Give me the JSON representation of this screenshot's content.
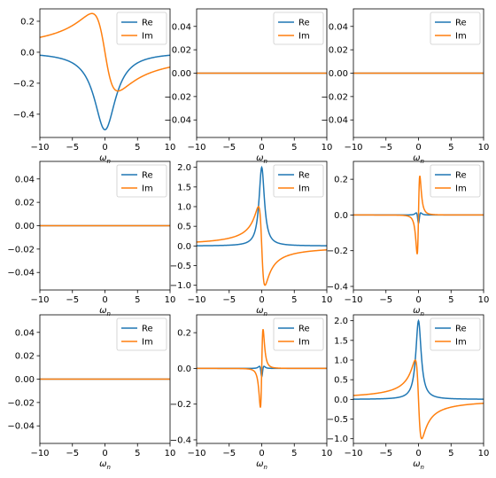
{
  "chart_data": [
    {
      "type": "line",
      "curve": "lorentz_dip",
      "amplitude": 0.5,
      "width": 2.0,
      "xlim": [
        -10,
        10
      ],
      "ylim": [
        -0.55,
        0.28
      ],
      "xticks": [
        -10,
        -5,
        0,
        5,
        10
      ],
      "xtick_labels": [
        "−10",
        "−5",
        "0",
        "5",
        "10"
      ],
      "yticks": [
        0.2,
        0.0,
        -0.2,
        -0.4
      ],
      "ytick_labels": [
        "0.2",
        "0.0",
        "−0.2",
        "−0.4"
      ],
      "xlabel": "ωn",
      "legend": {
        "position": "top-right",
        "entries": [
          "Re",
          "Im"
        ]
      }
    },
    {
      "type": "line",
      "curve": "zero",
      "xlim": [
        -10,
        10
      ],
      "ylim": [
        -0.055,
        0.055
      ],
      "xticks": [
        -10,
        -5,
        0,
        5,
        10
      ],
      "xtick_labels": [
        "−10",
        "−5",
        "0",
        "5",
        "10"
      ],
      "yticks": [
        0.04,
        0.02,
        0.0,
        -0.02,
        -0.04
      ],
      "ytick_labels": [
        "0.04",
        "0.02",
        "0.00",
        "−0.02",
        "−0.04"
      ],
      "xlabel": "ωn",
      "legend": {
        "position": "top-right",
        "entries": [
          "Re",
          "Im"
        ]
      }
    },
    {
      "type": "line",
      "curve": "zero",
      "xlim": [
        -10,
        10
      ],
      "ylim": [
        -0.055,
        0.055
      ],
      "xticks": [
        -10,
        -5,
        0,
        5,
        10
      ],
      "xtick_labels": [
        "−10",
        "−5",
        "0",
        "5",
        "10"
      ],
      "yticks": [
        0.04,
        0.02,
        0.0,
        -0.02,
        -0.04
      ],
      "ytick_labels": [
        "0.04",
        "0.02",
        "0.00",
        "−0.02",
        "−0.04"
      ],
      "xlabel": "ωn",
      "legend": {
        "position": "top-right",
        "entries": [
          "Re",
          "Im"
        ]
      }
    },
    {
      "type": "line",
      "curve": "zero",
      "xlim": [
        -10,
        10
      ],
      "ylim": [
        -0.055,
        0.055
      ],
      "xticks": [
        -10,
        -5,
        0,
        5,
        10
      ],
      "xtick_labels": [
        "−10",
        "−5",
        "0",
        "5",
        "10"
      ],
      "yticks": [
        0.04,
        0.02,
        0.0,
        -0.02,
        -0.04
      ],
      "ytick_labels": [
        "0.04",
        "0.02",
        "0.00",
        "−0.02",
        "−0.04"
      ],
      "xlabel": "ωn",
      "legend": {
        "position": "top-right",
        "entries": [
          "Re",
          "Im"
        ]
      }
    },
    {
      "type": "line",
      "curve": "lorentz_peak",
      "amplitude": 2.0,
      "width": 0.5,
      "xlim": [
        -10,
        10
      ],
      "ylim": [
        -1.12,
        2.15
      ],
      "xticks": [
        -10,
        -5,
        0,
        5,
        10
      ],
      "xtick_labels": [
        "−10",
        "−5",
        "0",
        "5",
        "10"
      ],
      "yticks": [
        2.0,
        1.5,
        1.0,
        0.5,
        0.0,
        -0.5,
        -1.0
      ],
      "ytick_labels": [
        "2.0",
        "1.5",
        "1.0",
        "0.5",
        "0.0",
        "−0.5",
        "−1.0"
      ],
      "xlabel": "ωn",
      "legend": {
        "position": "top-right",
        "entries": [
          "Re",
          "Im"
        ]
      }
    },
    {
      "type": "line",
      "curve": "derivative",
      "amplitude": 0.38,
      "imag_amplitude": 0.26,
      "width": 0.35,
      "xlim": [
        -10,
        10
      ],
      "ylim": [
        -0.42,
        0.3
      ],
      "xticks": [
        -10,
        -5,
        0,
        5,
        10
      ],
      "xtick_labels": [
        "−10",
        "−5",
        "0",
        "5",
        "10"
      ],
      "yticks": [
        0.2,
        0.0,
        -0.2,
        -0.4
      ],
      "ytick_labels": [
        "0.2",
        "0.0",
        "−0.2",
        "−0.4"
      ],
      "xlabel": "ωn",
      "legend": {
        "position": "top-right",
        "entries": [
          "Re",
          "Im"
        ]
      }
    },
    {
      "type": "line",
      "curve": "zero",
      "xlim": [
        -10,
        10
      ],
      "ylim": [
        -0.055,
        0.055
      ],
      "xticks": [
        -10,
        -5,
        0,
        5,
        10
      ],
      "xtick_labels": [
        "−10",
        "−5",
        "0",
        "5",
        "10"
      ],
      "yticks": [
        0.04,
        0.02,
        0.0,
        -0.02,
        -0.04
      ],
      "ytick_labels": [
        "0.04",
        "0.02",
        "0.00",
        "−0.02",
        "−0.04"
      ],
      "xlabel": "ωn",
      "legend": {
        "position": "top-right",
        "entries": [
          "Re",
          "Im"
        ]
      }
    },
    {
      "type": "line",
      "curve": "derivative",
      "amplitude": 0.38,
      "imag_amplitude": 0.26,
      "width": 0.35,
      "xlim": [
        -10,
        10
      ],
      "ylim": [
        -0.42,
        0.3
      ],
      "xticks": [
        -10,
        -5,
        0,
        5,
        10
      ],
      "xtick_labels": [
        "−10",
        "−5",
        "0",
        "5",
        "10"
      ],
      "yticks": [
        0.2,
        0.0,
        -0.2,
        -0.4
      ],
      "ytick_labels": [
        "0.2",
        "0.0",
        "−0.2",
        "−0.4"
      ],
      "xlabel": "ωn",
      "legend": {
        "position": "top-right",
        "entries": [
          "Re",
          "Im"
        ]
      }
    },
    {
      "type": "line",
      "curve": "lorentz_peak",
      "amplitude": 2.0,
      "width": 0.5,
      "xlim": [
        -10,
        10
      ],
      "ylim": [
        -1.12,
        2.15
      ],
      "xticks": [
        -10,
        -5,
        0,
        5,
        10
      ],
      "xtick_labels": [
        "−10",
        "−5",
        "0",
        "5",
        "10"
      ],
      "yticks": [
        2.0,
        1.5,
        1.0,
        0.5,
        0.0,
        -0.5,
        -1.0
      ],
      "ytick_labels": [
        "2.0",
        "1.5",
        "1.0",
        "0.5",
        "0.0",
        "−0.5",
        "−1.0"
      ],
      "xlabel": "ωn",
      "legend": {
        "position": "top-right",
        "entries": [
          "Re",
          "Im"
        ]
      }
    }
  ],
  "colors": {
    "Re": "#1f77b4",
    "Im": "#ff7f0e",
    "axes": "#000000",
    "legend_border": "#cccccc"
  }
}
